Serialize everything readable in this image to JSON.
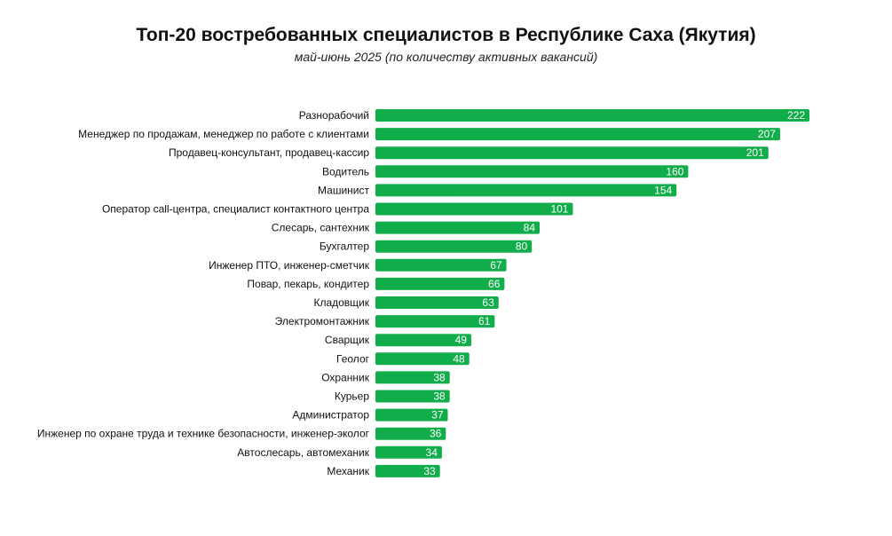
{
  "chart_data": {
    "type": "bar",
    "orientation": "horizontal",
    "title": "Топ-20 востребованных специалистов в Республике Саха (Якутия)",
    "subtitle": "май-июнь 2025 (по количеству активных вакансий)",
    "xlabel": "",
    "ylabel": "",
    "grid": false,
    "legend": "none",
    "xlim": [
      0,
      222
    ],
    "bar_color": "#12ad4b",
    "value_label_color": "#ffffff",
    "categories": [
      "Разнорабочий",
      "Менеджер по продажам, менеджер по работе с клиентами",
      "Продавец-консультант, продавец-кассир",
      "Водитель",
      "Машинист",
      "Оператор call-центра, специалист контактного центра",
      "Слесарь, сантехник",
      "Бухгалтер",
      "Инженер ПТО, инженер-сметчик",
      "Повар, пекарь, кондитер",
      "Кладовщик",
      "Электромонтажник",
      "Сварщик",
      "Геолог",
      "Охранник",
      "Курьер",
      "Администратор",
      "Инженер по охране труда и технике безопасности, инженер-эколог",
      "Автослесарь, автомеханик",
      "Механик"
    ],
    "values": [
      222,
      207,
      201,
      160,
      154,
      101,
      84,
      80,
      67,
      66,
      63,
      61,
      49,
      48,
      38,
      38,
      37,
      36,
      34,
      33
    ]
  }
}
